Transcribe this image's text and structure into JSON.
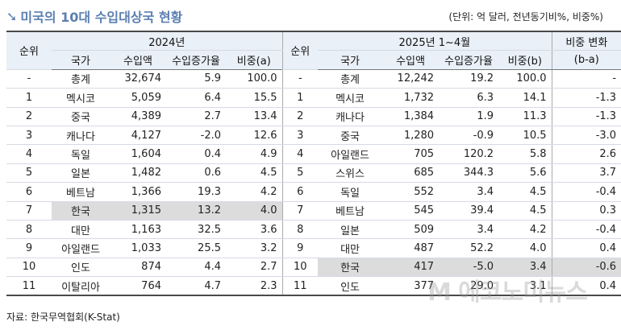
{
  "title": "미국의 10대 수입대상국 현황",
  "unit_note": "(단위: 억 달러, 전년동기비%, 비중%)",
  "headers": {
    "rank": "순위",
    "period_2024": "2024년",
    "period_2025": "2025년 1~4월",
    "change_top": "비중 변화",
    "change_bottom": "(b-a)",
    "country": "국가",
    "import_value": "수입액",
    "growth": "수입증가율",
    "share_a": "비중(a)",
    "share_b": "비중(b)"
  },
  "rows": [
    {
      "r1": "-",
      "c1": "총계",
      "v1": "32,674",
      "g1": "5.9",
      "s1": "100.0",
      "r2": "-",
      "c2": "총계",
      "v2": "12,242",
      "g2": "19.2",
      "s2": "100.0",
      "d": "-"
    },
    {
      "r1": "1",
      "c1": "멕시코",
      "v1": "5,059",
      "g1": "6.4",
      "s1": "15.5",
      "r2": "1",
      "c2": "멕시코",
      "v2": "1,732",
      "g2": "6.3",
      "s2": "14.1",
      "d": "-1.3"
    },
    {
      "r1": "2",
      "c1": "중국",
      "v1": "4,389",
      "g1": "2.7",
      "s1": "13.4",
      "r2": "2",
      "c2": "캐나다",
      "v2": "1,384",
      "g2": "1.9",
      "s2": "11.3",
      "d": "-1.3"
    },
    {
      "r1": "3",
      "c1": "캐나다",
      "v1": "4,127",
      "g1": "-2.0",
      "s1": "12.6",
      "r2": "3",
      "c2": "중국",
      "v2": "1,280",
      "g2": "-0.9",
      "s2": "10.5",
      "d": "-3.0"
    },
    {
      "r1": "4",
      "c1": "독일",
      "v1": "1,604",
      "g1": "0.4",
      "s1": "4.9",
      "r2": "4",
      "c2": "아일랜드",
      "v2": "705",
      "g2": "120.2",
      "s2": "5.8",
      "d": "2.6"
    },
    {
      "r1": "5",
      "c1": "일본",
      "v1": "1,482",
      "g1": "0.6",
      "s1": "4.5",
      "r2": "5",
      "c2": "스위스",
      "v2": "685",
      "g2": "344.3",
      "s2": "5.6",
      "d": "3.7"
    },
    {
      "r1": "6",
      "c1": "베트남",
      "v1": "1,366",
      "g1": "19.3",
      "s1": "4.2",
      "r2": "6",
      "c2": "독일",
      "v2": "552",
      "g2": "3.4",
      "s2": "4.5",
      "d": "-0.4"
    },
    {
      "r1": "7",
      "c1": "한국",
      "v1": "1,315",
      "g1": "13.2",
      "s1": "4.0",
      "r2": "7",
      "c2": "베트남",
      "v2": "545",
      "g2": "39.4",
      "s2": "4.5",
      "d": "0.3"
    },
    {
      "r1": "8",
      "c1": "대만",
      "v1": "1,163",
      "g1": "32.5",
      "s1": "3.6",
      "r2": "8",
      "c2": "일본",
      "v2": "509",
      "g2": "3.4",
      "s2": "4.2",
      "d": "-0.4"
    },
    {
      "r1": "9",
      "c1": "아일랜드",
      "v1": "1,033",
      "g1": "25.5",
      "s1": "3.2",
      "r2": "9",
      "c2": "대만",
      "v2": "487",
      "g2": "52.2",
      "s2": "4.0",
      "d": "0.4"
    },
    {
      "r1": "10",
      "c1": "인도",
      "v1": "874",
      "g1": "4.4",
      "s1": "2.7",
      "r2": "10",
      "c2": "한국",
      "v2": "417",
      "g2": "-5.0",
      "s2": "3.4",
      "d": "-0.6"
    },
    {
      "r1": "11",
      "c1": "이탈리아",
      "v1": "764",
      "g1": "4.7",
      "s1": "2.3",
      "r2": "11",
      "c2": "인도",
      "v2": "377",
      "g2": "29.0",
      "s2": "3.1",
      "d": "0.4"
    }
  ],
  "source": "자료: 한국무역협회(K-Stat)",
  "watermark": "M 에코노미뉴스",
  "colors": {
    "title": "#5b7fb0",
    "header_bg": "#eaf0f7",
    "highlight": "#dcdcdc"
  }
}
